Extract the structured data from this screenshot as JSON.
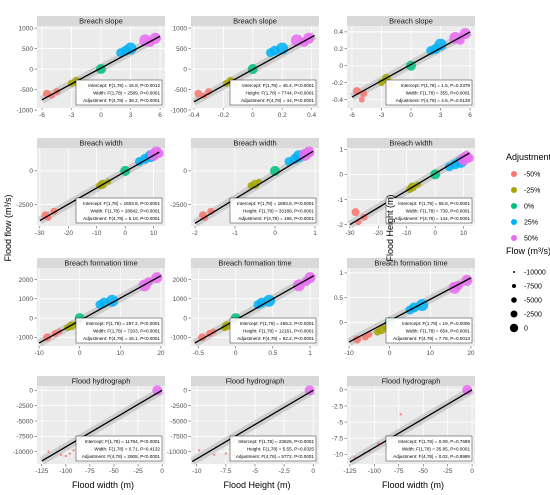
{
  "figure": {
    "y_axis_titles": [
      "Flood flow (m³/s)",
      "Flood Height (m)"
    ],
    "x_axis_titles": [
      "Flood width (m)",
      "Flood Height (m)",
      "Flood width (m)"
    ]
  },
  "legend": {
    "color_title": "Adjustment",
    "color_items": [
      {
        "label": "-50%",
        "color": "#F8766D"
      },
      {
        "label": "-25%",
        "color": "#A3A500"
      },
      {
        "label": "0%",
        "color": "#00BF7D"
      },
      {
        "label": "25%",
        "color": "#00B0F6"
      },
      {
        "label": "50%",
        "color": "#E76BF3"
      }
    ],
    "size_title": "Flow (m³/s)",
    "size_items": [
      "-10000",
      "-7500",
      "-5000",
      "-2500",
      "0"
    ],
    "placement": "right"
  },
  "chart_data": [
    {
      "type": "scatter",
      "title": "Breach slope",
      "row": 0,
      "col": 0,
      "xlim": [
        -6.5,
        6.5
      ],
      "ylim": [
        -950,
        1050
      ],
      "xticks": [
        -6,
        -3,
        0,
        3,
        6
      ],
      "yticks": [
        -1000,
        -500,
        0,
        500,
        1000
      ],
      "x": [
        -5.5,
        -4.5,
        -5,
        -2.5,
        -3,
        -2,
        0,
        2.5,
        3,
        2,
        4.5,
        5.5,
        5
      ],
      "y": [
        -600,
        -550,
        -650,
        -300,
        -350,
        -400,
        0,
        450,
        500,
        400,
        700,
        750,
        650
      ],
      "fit": {
        "x0": -6,
        "y0": -750,
        "x1": 6,
        "y1": 800
      },
      "stats": [
        "Intercept: F(1,78) = 15.8, P<0.0012",
        "Width: F(1,78) = 2589, P<0.0001",
        "Adjustment: F(4,78) = 36.2, P<0.0001"
      ]
    },
    {
      "type": "scatter",
      "title": "Breach slope",
      "row": 0,
      "col": 1,
      "xlim": [
        -0.42,
        0.45
      ],
      "ylim": [
        -950,
        1050
      ],
      "xticks": [
        -0.4,
        -0.2,
        0.0,
        0.2,
        0.4
      ],
      "yticks": [
        -1000,
        -500,
        0,
        500,
        1000
      ],
      "x": [
        -0.37,
        -0.3,
        -0.33,
        -0.15,
        -0.18,
        -0.12,
        0,
        0.15,
        0.2,
        0.12,
        0.3,
        0.38,
        0.35
      ],
      "y": [
        -600,
        -550,
        -650,
        -300,
        -350,
        -400,
        0,
        450,
        500,
        400,
        700,
        750,
        650
      ],
      "fit": {
        "x0": -0.4,
        "y0": -800,
        "x1": 0.42,
        "y1": 820
      },
      "stats": [
        "Intercept: F(1,78) = 45.4, P<0.0001",
        "Height: F(1,78) = 7744, P<0.0001",
        "Adjustment: F(4,78) = 44, P<0.0001"
      ]
    },
    {
      "type": "scatter",
      "title": "Breach slope",
      "row": 0,
      "col": 2,
      "xlim": [
        -6.5,
        6.5
      ],
      "ylim": [
        -0.5,
        0.47
      ],
      "xticks": [
        -6,
        -3,
        0,
        3,
        6
      ],
      "yticks": [
        -0.4,
        -0.2,
        0.0,
        0.2,
        0.4
      ],
      "x": [
        -5.5,
        -4.8,
        -5,
        -2.5,
        -3,
        -2,
        0,
        2.5,
        3,
        2,
        4.5,
        5.5,
        5
      ],
      "y": [
        -0.3,
        -0.33,
        -0.4,
        -0.15,
        -0.2,
        -0.22,
        0,
        0.2,
        0.25,
        0.18,
        0.33,
        0.38,
        0.3
      ],
      "fit": {
        "x0": -6,
        "y0": -0.37,
        "x1": 6,
        "y1": 0.4
      },
      "stats": [
        "Intercept: F(1,78) = 1.5, P=0.2379",
        "Width: F(1,78) = 355, P<0.0001",
        "Adjustment: F(4,78) = 4.5, P=0.0138"
      ]
    },
    {
      "type": "scatter",
      "title": "Breach width",
      "row": 1,
      "col": 0,
      "xlim": [
        -31,
        14
      ],
      "ylim": [
        -4100,
        1700
      ],
      "xticks": [
        -30,
        -20,
        -10,
        0,
        10
      ],
      "yticks": [
        -2500,
        0
      ],
      "x": [
        -28,
        -25,
        -27,
        -8,
        -9,
        -6,
        0,
        7,
        9,
        5,
        10,
        11,
        12
      ],
      "y": [
        -3300,
        -3000,
        -3500,
        -1000,
        -1100,
        -800,
        0,
        900,
        1100,
        700,
        1200,
        1400,
        1300
      ],
      "fit": {
        "x0": -30,
        "y0": -3700,
        "x1": 12,
        "y1": 1400
      },
      "stats": [
        "Intercept: F(1,78) = 1603.8, P<0.0001",
        "Width: F(1,78) = 28842, P<0.0001",
        "Adjustment: F(4,78) = 5.18, P<0.0001"
      ]
    },
    {
      "type": "scatter",
      "title": "Breach width",
      "row": 1,
      "col": 1,
      "xlim": [
        -2.1,
        1.1
      ],
      "ylim": [
        -4100,
        1700
      ],
      "xticks": [
        -2,
        -1,
        0,
        1
      ],
      "yticks": [
        -2500,
        0
      ],
      "x": [
        -1.8,
        -1.6,
        -1.75,
        -0.5,
        -0.6,
        -0.4,
        0,
        0.5,
        0.6,
        0.35,
        0.75,
        0.85,
        0.8
      ],
      "y": [
        -3300,
        -3000,
        -3500,
        -1000,
        -1100,
        -800,
        0,
        900,
        1100,
        700,
        1200,
        1400,
        1300
      ],
      "fit": {
        "x0": -2,
        "y0": -3900,
        "x1": 0.95,
        "y1": 1450
      },
      "stats": [
        "Intercept: F(1,78) = 1893.8, P<0.0001",
        "Height: F(1,78) = 33188, P<0.0001",
        "Adjustment: F(4,78) = 186, P<0.0001"
      ]
    },
    {
      "type": "scatter",
      "title": "Breach width",
      "row": 1,
      "col": 2,
      "xlim": [
        -31,
        14
      ],
      "ylim": [
        -2.05,
        1.05
      ],
      "xticks": [
        -30,
        -20,
        -10,
        0,
        10
      ],
      "yticks": [
        -2,
        -1,
        0,
        1
      ],
      "x": [
        -28,
        -25,
        -27,
        -8,
        -9,
        -6,
        0,
        7,
        9,
        5,
        10,
        11,
        12
      ],
      "y": [
        -1.5,
        -1.7,
        -1.9,
        -0.5,
        -0.6,
        -0.4,
        0,
        0.4,
        0.5,
        0.3,
        0.6,
        0.7,
        0.65
      ],
      "fit": {
        "x0": -30,
        "y0": -2,
        "x1": 12,
        "y1": 0.85
      },
      "stats": [
        "Intercept: F(1,78) = 55.8, P<0.0001",
        "Width: F(1,78) = 739, P<0.0001",
        "Adjustment: F(4,78) = 144, P<0.0001"
      ]
    },
    {
      "type": "scatter",
      "title": "Breach formation time",
      "row": 2,
      "col": 0,
      "xlim": [
        -10.5,
        21
      ],
      "ylim": [
        -1450,
        2600
      ],
      "xticks": [
        -10,
        0,
        10,
        20
      ],
      "yticks": [
        -1000,
        0,
        1000,
        2000
      ],
      "x": [
        -8,
        -6,
        -5,
        -2,
        -3,
        -1,
        0,
        6,
        8,
        5,
        16,
        19,
        17
      ],
      "y": [
        -1000,
        -800,
        -700,
        -400,
        -500,
        -300,
        0,
        800,
        900,
        700,
        1700,
        2100,
        1900
      ],
      "fit": {
        "x0": -10,
        "y0": -1300,
        "x1": 20,
        "y1": 2200
      },
      "stats": [
        "Intercept: F(1,78) = 297.2, P<0.0001",
        "Width: F(1,78) = 7203, P<0.0001",
        "Adjustment: F(4,78) = 15.1, P<0.0001"
      ]
    },
    {
      "type": "scatter",
      "title": "Breach formation time",
      "row": 2,
      "col": 1,
      "xlim": [
        -0.6,
        1.12
      ],
      "ylim": [
        -1450,
        2600
      ],
      "xticks": [
        -0.5,
        0.0,
        0.5,
        1.0
      ],
      "yticks": [
        -1000,
        0,
        1000,
        2000
      ],
      "x": [
        -0.45,
        -0.35,
        -0.3,
        -0.12,
        -0.15,
        -0.05,
        0,
        0.35,
        0.45,
        0.3,
        0.85,
        1.0,
        0.95
      ],
      "y": [
        -1000,
        -800,
        -700,
        -400,
        -500,
        -300,
        0,
        800,
        900,
        700,
        1700,
        2100,
        1900
      ],
      "fit": {
        "x0": -0.55,
        "y0": -1300,
        "x1": 1.05,
        "y1": 2200
      },
      "stats": [
        "Intercept: F(1,78) = 469.2, P<0.0001",
        "Height: F(1,78) = 12161, P<0.0001",
        "Adjustment: F(4,78) = 62.2, P<0.0001"
      ]
    },
    {
      "type": "scatter",
      "title": "Breach formation time",
      "row": 2,
      "col": 2,
      "xlim": [
        -10.5,
        21
      ],
      "ylim": [
        -0.48,
        1.1
      ],
      "xticks": [
        -10,
        0,
        10,
        20
      ],
      "yticks": [
        0.0,
        0.5,
        1.0
      ],
      "x": [
        -8,
        -6,
        -5,
        -2,
        -3,
        -1,
        0,
        6,
        8,
        5,
        16,
        19,
        17
      ],
      "y": [
        -0.35,
        -0.3,
        -0.25,
        -0.15,
        -0.2,
        -0.1,
        0,
        0.3,
        0.35,
        0.25,
        0.7,
        0.85,
        0.75
      ],
      "fit": {
        "x0": -10,
        "y0": -0.4,
        "x1": 20,
        "y1": 0.9
      },
      "stats": [
        "Intercept: F(1,78) = 19, P=0.0006",
        "Width: F(1,78) = 654, P<0.0001",
        "Adjustment: F(4,78) = 7.78, P=0.0013"
      ]
    },
    {
      "type": "scatter",
      "title": "Flood hydrograph",
      "row": 3,
      "col": 0,
      "xlim": [
        -130,
        3
      ],
      "ylim": [
        -12000,
        700
      ],
      "xticks": [
        -125,
        -100,
        -75,
        -50,
        -25,
        0
      ],
      "yticks": [
        -10000,
        -7500,
        -5000,
        -2500,
        0
      ],
      "x": [
        -118,
        -105,
        -100,
        -96,
        -92,
        -5
      ],
      "y": [
        -10000,
        -10500,
        -10700,
        -10300,
        -9800,
        0
      ],
      "fit": {
        "x0": -125,
        "y0": -11500,
        "x1": 0,
        "y1": 0
      },
      "stats": [
        "Intercept: F(1,78) = 11784, P<0.0001",
        "Width: F(1,78) = 0.71, P=0.4132",
        "Adjustment: F(4,78) = 2908, P<0.0001"
      ]
    },
    {
      "type": "scatter",
      "title": "Flood hydrograph",
      "row": 3,
      "col": 1,
      "xlim": [
        -10.5,
        0.5
      ],
      "ylim": [
        -12000,
        700
      ],
      "xticks": [
        -10.0,
        -7.5,
        -5.0,
        -2.5,
        0.0
      ],
      "yticks": [
        -10000,
        -7500,
        -5000,
        -2500,
        0
      ],
      "x": [
        -9.8,
        -8.5,
        -7.5,
        -6.8,
        -6.2,
        -0.3
      ],
      "y": [
        -9800,
        -10500,
        -10300,
        -10000,
        -9900,
        0
      ],
      "fit": {
        "x0": -10.4,
        "y0": -11600,
        "x1": 0,
        "y1": 0
      },
      "stats": [
        "Intercept: F(1,78) = 23626, P<0.0001",
        "Height: F(1,78) = 5.55, P=0.0325",
        "Adjustment: F(4,78) = 5772, P<0.0001"
      ]
    },
    {
      "type": "scatter",
      "title": "Flood hydrograph",
      "row": 3,
      "col": 2,
      "xlim": [
        -128,
        3
      ],
      "ylim": [
        -11.5,
        0.6
      ],
      "xticks": [
        -125,
        -100,
        -75,
        -50,
        -25,
        0
      ],
      "yticks": [
        -10.0,
        -7.5,
        -5.0,
        -2.5,
        0.0
      ],
      "x": [
        -120,
        -110,
        -105,
        -96,
        -73,
        -5
      ],
      "y": [
        -10.5,
        -9.8,
        -9.5,
        -8.3,
        -3.8,
        0
      ],
      "fit": {
        "x0": -125,
        "y0": -11.2,
        "x1": 0,
        "y1": 0
      },
      "stats": [
        "Intercept: F(1,78) = 0.09, P=0.7689",
        "Width: F(1,78) = 35.85, P<0.0001",
        "Adjustment: F(4,78) = 0.02, P=0.9989"
      ]
    }
  ]
}
